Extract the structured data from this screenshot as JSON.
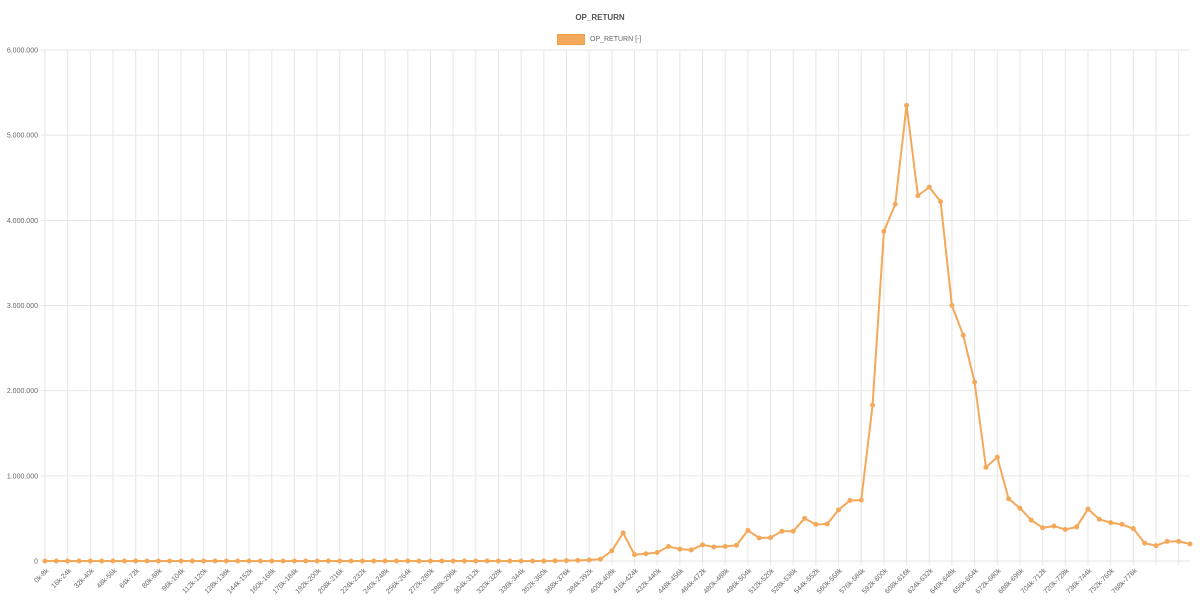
{
  "chart_data": {
    "type": "line",
    "title": "OP_RETURN",
    "legend": {
      "position": "top-center"
    },
    "series": [
      {
        "name": "OP_RETURN [-]",
        "color": "#f4a95a",
        "values": [
          0,
          0,
          0,
          0,
          0,
          0,
          0,
          0,
          0,
          0,
          0,
          0,
          0,
          0,
          0,
          0,
          0,
          0,
          0,
          0,
          0,
          0,
          0,
          0,
          0,
          0,
          0,
          0,
          0,
          0,
          0,
          0,
          0,
          0,
          0,
          0,
          0,
          0,
          0,
          0,
          0,
          0,
          0,
          0,
          0,
          2000,
          5000,
          8000,
          12000,
          22000,
          120000,
          330000,
          75000,
          85000,
          100000,
          170000,
          140000,
          130000,
          190000,
          165000,
          170000,
          185000,
          360000,
          270000,
          275000,
          350000,
          350000,
          500000,
          430000,
          435000,
          600000,
          710000,
          715000,
          1830000,
          3870000,
          4190000,
          5350000,
          4290000,
          4390000,
          4220000,
          3000000,
          2650000,
          2100000,
          1100000,
          1220000,
          730000,
          620000,
          480000,
          390000,
          410000,
          370000,
          400000,
          610000,
          490000,
          450000,
          430000,
          380000,
          210000,
          180000,
          230000,
          230000,
          200000
        ]
      }
    ],
    "x_tick_labels": [
      "0k-8k",
      "16k-24k",
      "32k-40k",
      "48k-56k",
      "64k-72k",
      "80k-88k",
      "96k-104k",
      "112k-120k",
      "128k-136k",
      "144k-152k",
      "160k-168k",
      "176k-184k",
      "192k-200k",
      "208k-216k",
      "224k-232k",
      "240k-248k",
      "256k-264k",
      "272k-280k",
      "288k-296k",
      "304k-312k",
      "320k-328k",
      "336k-344k",
      "352k-360k",
      "368k-376k",
      "384k-392k",
      "400k-408k",
      "416k-424k",
      "432k-440k",
      "448k-456k",
      "464k-472k",
      "480k-488k",
      "496k-504k",
      "512k-520k",
      "528k-536k",
      "544k-552k",
      "560k-568k",
      "576k-584k",
      "592k-600k",
      "608k-616k",
      "624k-632k",
      "640k-648k",
      "656k-664k",
      "672k-680k",
      "688k-696k",
      "704k-712k",
      "720k-728k",
      "736k-744k",
      "752k-760k",
      "768k-776k"
    ],
    "y_ticks": [
      {
        "value": 0,
        "label": "0"
      },
      {
        "value": 1000000,
        "label": "1.000.000"
      },
      {
        "value": 2000000,
        "label": "2.000.000"
      },
      {
        "value": 3000000,
        "label": "3.000.000"
      },
      {
        "value": 4000000,
        "label": "4.000.000"
      },
      {
        "value": 5000000,
        "label": "5.000.000"
      },
      {
        "value": 6000000,
        "label": "6.000.000"
      }
    ],
    "ylim": [
      0,
      6000000
    ],
    "grid": true
  }
}
